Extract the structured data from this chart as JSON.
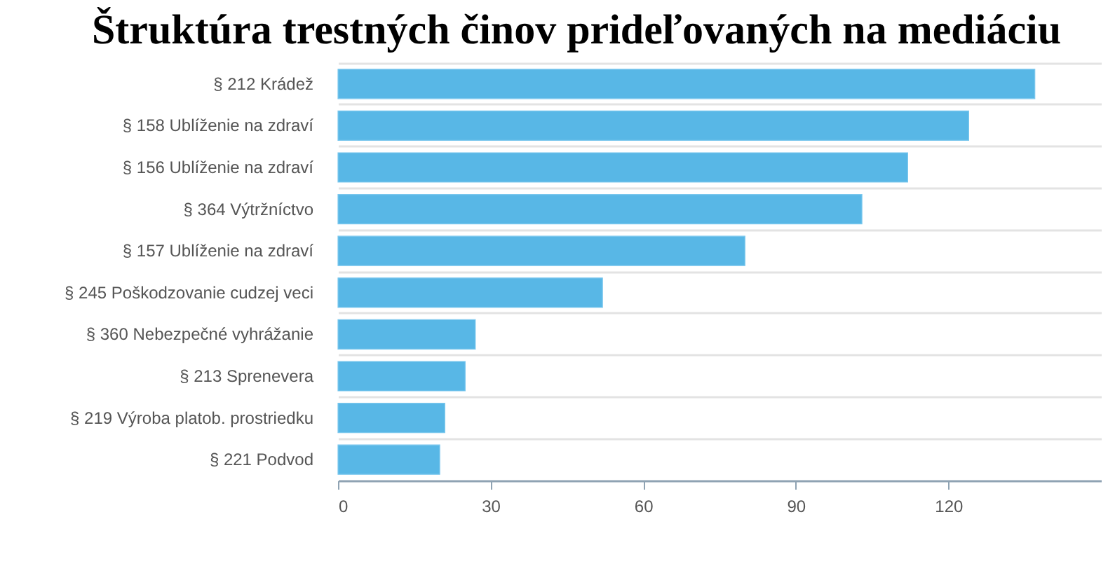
{
  "chart_data": {
    "type": "bar",
    "orientation": "horizontal",
    "title": "Štruktúra trestných činov prideľovaných na mediáciu",
    "categories": [
      "§ 212 Krádež",
      "§ 158 Ublíženie na zdraví",
      "§ 156 Ublíženie na zdraví",
      "§ 364 Výtržníctvo",
      "§ 157 Ublíženie na zdraví",
      "§ 245 Poškodzovanie cudzej veci",
      "§ 360 Nebezpečné vyhrážanie",
      "§ 213 Sprenevera",
      "§ 219 Výroba platob. prostriedku",
      "§ 221 Podvod"
    ],
    "values": [
      137,
      124,
      112,
      103,
      80,
      52,
      27,
      25,
      21,
      20
    ],
    "color": "#58b7e6",
    "xlim": [
      0,
      150
    ],
    "xticks": [
      0,
      30,
      60,
      90,
      120
    ],
    "grid": "y"
  }
}
